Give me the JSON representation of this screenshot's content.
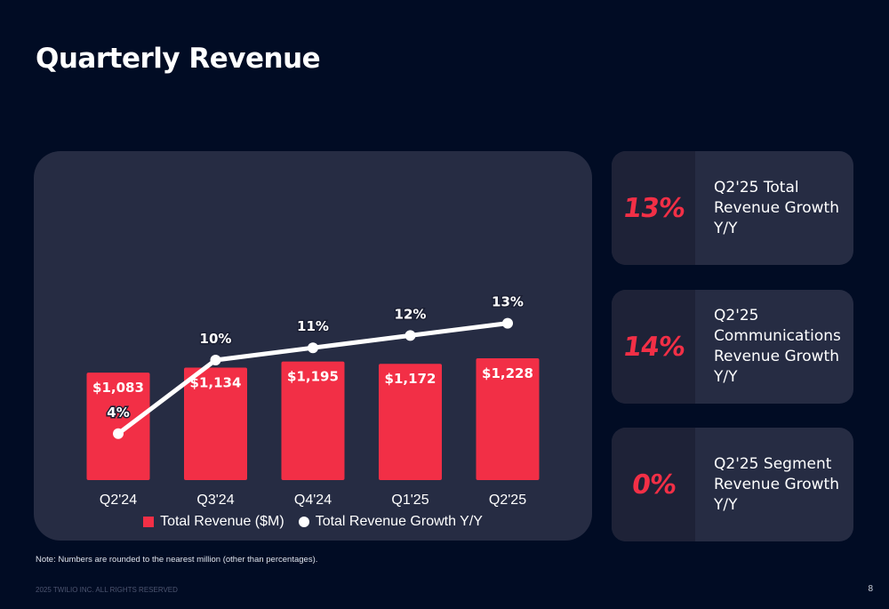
{
  "page": {
    "title": "Quarterly Revenue",
    "footnote": "Note: Numbers are rounded to the nearest million (other than percentages).",
    "footer": "2025 TWILIO INC. ALL RIGHTS RESERVED",
    "page_number": "8"
  },
  "colors": {
    "background": "#010c24",
    "panel": "#262c43",
    "accent": "#f22f46",
    "line": "#ffffff"
  },
  "chart_data": {
    "type": "bar",
    "categories": [
      "Q2'24",
      "Q3'24",
      "Q4'24",
      "Q1'25",
      "Q2'25"
    ],
    "series": [
      {
        "name": "Total Revenue ($M)",
        "type": "bar",
        "values": [
          1083,
          1134,
          1195,
          1172,
          1228
        ],
        "labels": [
          "$1,083",
          "$1,134",
          "$1,195",
          "$1,172",
          "$1,228"
        ]
      },
      {
        "name": "Total Revenue Growth Y/Y",
        "type": "line",
        "values": [
          4,
          10,
          11,
          12,
          13
        ],
        "labels": [
          "4%",
          "10%",
          "11%",
          "12%",
          "13%"
        ]
      }
    ],
    "legend": [
      "Total Revenue ($M)",
      "Total Revenue Growth Y/Y"
    ],
    "legend_position": "bottom",
    "grid": false
  },
  "kpis": [
    {
      "value": "13%",
      "label": "Q2'25 Total Revenue Growth Y/Y"
    },
    {
      "value": "14%",
      "label": "Q2'25 Communications Revenue Growth Y/Y"
    },
    {
      "value": "0%",
      "label": "Q2'25 Segment Revenue Growth Y/Y"
    }
  ]
}
